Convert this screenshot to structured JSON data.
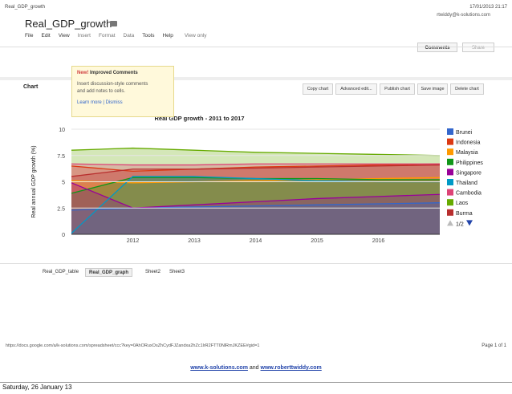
{
  "print_header": {
    "left": "Real_GDP_growth",
    "right": "17/01/2013 21:17"
  },
  "doc": {
    "title": "Real_GDP_growth",
    "user_email": "rtwiddy@k-solutions.com"
  },
  "buttons": {
    "comments": "Comments",
    "share": "Share"
  },
  "menu": [
    "File",
    "Edit",
    "View",
    "Insert",
    "Format",
    "Data",
    "Tools",
    "Help",
    "View only"
  ],
  "popup": {
    "new_label": "New!",
    "heading": "Improved Comments",
    "body_line1": "Insert discussion-style comments",
    "body_line2": "and add notes to cells.",
    "learn_more": "Learn more",
    "separator": "|",
    "dismiss": "Dismiss"
  },
  "chart_panel": {
    "label": "Chart",
    "toolbar": [
      "Copy chart",
      "Advanced edit...",
      "Publish chart",
      "Save image",
      "Delete chart"
    ]
  },
  "sheets": [
    "Real_GDP_table",
    "Real_GDP_graph",
    "Sheet2",
    "Sheet3"
  ],
  "active_sheet": "Real_GDP_graph",
  "print_footer": {
    "url": "https://docs.google.com/a/k-solutions.com/spreadsheet/ccc?key=0AhORuxOsZhCydFJZandxa2hZc1lrR2FTT0NlRmJKZEE#gid=1",
    "page": "Page 1 of 1",
    "link1": "www.k-solutions.com",
    "and": "and",
    "link2": "www.roberttwiddy.com",
    "date": "Saturday, 26 January 13"
  },
  "chart_data": {
    "type": "area",
    "title": "Real GDP growth - 2011 to 2017",
    "xlabel": "",
    "ylabel": "Real annual GDP growth (%)",
    "x": [
      2011,
      2012,
      2013,
      2014,
      2015,
      2016,
      2017
    ],
    "x_ticks": [
      2012,
      2013,
      2014,
      2015,
      2016
    ],
    "y_ticks": [
      "0",
      "2.5",
      "5",
      "7.5",
      "10"
    ],
    "ylim": [
      0,
      10
    ],
    "legend_page": "1/2",
    "series": [
      {
        "name": "Brunei",
        "color": "#3366cc",
        "values": [
          2.3,
          2.5,
          2.6,
          2.7,
          2.8,
          2.9,
          3.0
        ]
      },
      {
        "name": "Indonesia",
        "color": "#dc3912",
        "values": [
          6.5,
          6.0,
          6.2,
          6.4,
          6.5,
          6.6,
          6.7
        ]
      },
      {
        "name": "Malaysia",
        "color": "#ff9900",
        "values": [
          5.1,
          4.9,
          5.0,
          5.1,
          5.2,
          5.3,
          5.4
        ]
      },
      {
        "name": "Philippines",
        "color": "#109618",
        "values": [
          3.9,
          5.4,
          5.4,
          5.3,
          5.3,
          5.2,
          5.2
        ]
      },
      {
        "name": "Singapore",
        "color": "#990099",
        "values": [
          4.9,
          2.5,
          2.8,
          3.1,
          3.4,
          3.6,
          3.8
        ]
      },
      {
        "name": "Thailand",
        "color": "#0099c6",
        "values": [
          0.1,
          5.5,
          5.5,
          5.3,
          5.1,
          5.0,
          5.0
        ]
      },
      {
        "name": "Cambodia",
        "color": "#dd4477",
        "values": [
          6.7,
          6.6,
          6.6,
          6.7,
          6.7,
          6.7,
          6.7
        ]
      },
      {
        "name": "Laos",
        "color": "#66aa00",
        "values": [
          8.0,
          8.2,
          8.0,
          7.8,
          7.7,
          7.6,
          7.5
        ]
      },
      {
        "name": "Burma",
        "color": "#b82e2e",
        "values": [
          5.5,
          6.2,
          6.2,
          6.3,
          6.4,
          6.5,
          6.6
        ]
      }
    ]
  }
}
